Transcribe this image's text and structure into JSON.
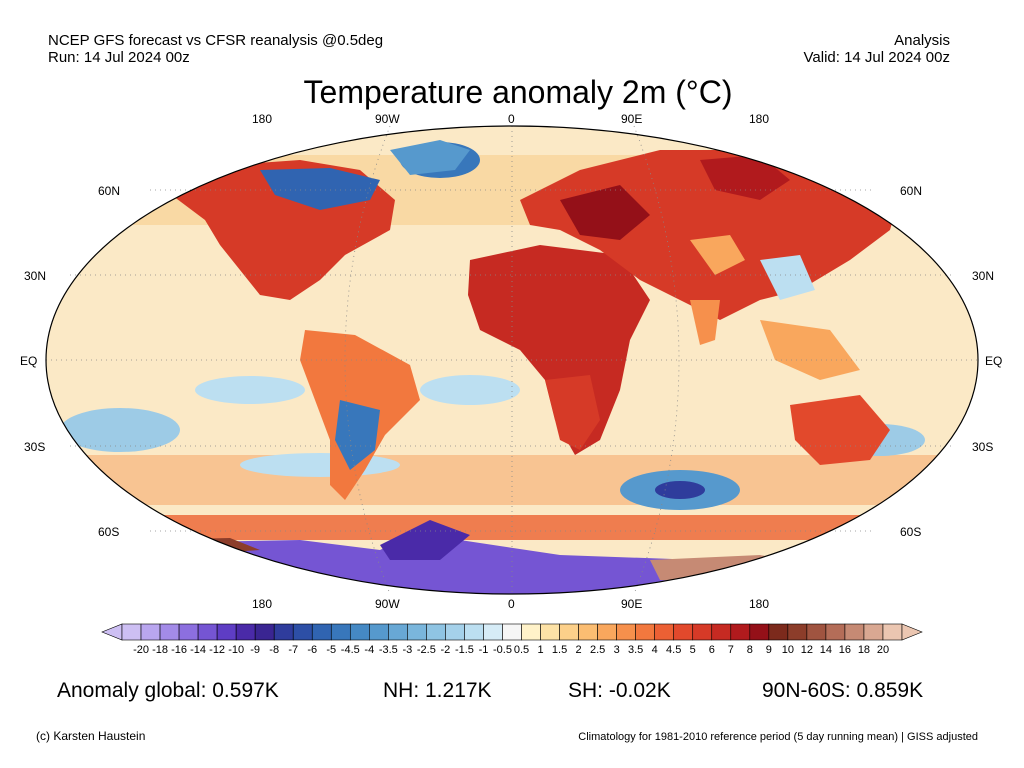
{
  "header": {
    "line1_left": "NCEP GFS forecast vs CFSR reanalysis @0.5deg",
    "line2_left": "Run: 14 Jul 2024 00z",
    "line1_right": "Analysis",
    "line2_right": "Valid: 14 Jul 2024 00z"
  },
  "title": "Temperature anomaly 2m (°C)",
  "map": {
    "projection": "Robinson",
    "lon_labels_top": [
      "180",
      "90W",
      "0",
      "90E",
      "180"
    ],
    "lon_labels_bottom": [
      "180",
      "90W",
      "0",
      "90E",
      "180"
    ],
    "lat_labels_left": [
      "60N",
      "30N",
      "EQ",
      "30S",
      "60S"
    ],
    "lat_labels_right": [
      "60N",
      "30N",
      "EQ",
      "30S",
      "60S"
    ],
    "field_description": "2m temperature anomaly",
    "colors": {
      "ocean_neutral": "#fbe9c6",
      "warm": "#e8593a",
      "hot": "#b71c1c",
      "cool": "#9dcbe6",
      "cold": "#3f6fb5",
      "very_cold": "#6a3fbf",
      "grid": "#888888",
      "coast": "#222222"
    }
  },
  "colorbar": {
    "labels": [
      "-20",
      "-18",
      "-16",
      "-14",
      "-12",
      "-10",
      "-9",
      "-8",
      "-7",
      "-6",
      "-5",
      "-4.5",
      "-4",
      "-3.5",
      "-3",
      "-2.5",
      "-2",
      "-1.5",
      "-1",
      "-0.5",
      "0.5",
      "1",
      "1.5",
      "2",
      "2.5",
      "3",
      "3.5",
      "4",
      "4.5",
      "5",
      "6",
      "7",
      "8",
      "9",
      "10",
      "12",
      "14",
      "16",
      "18",
      "20"
    ],
    "colors": [
      "#cdbff3",
      "#b9a6ef",
      "#a38be8",
      "#8c6fdf",
      "#7555d3",
      "#5e3dc4",
      "#4a2aa8",
      "#3a2592",
      "#2f3c9c",
      "#2d4fa6",
      "#3064b1",
      "#3877bb",
      "#4589c4",
      "#5699cd",
      "#68a8d5",
      "#7ab6dc",
      "#8fc4e3",
      "#a5d1ea",
      "#bcdff1",
      "#d6ecf7",
      "#f6f6f6",
      "#fff2c9",
      "#fde2a6",
      "#fcd08a",
      "#fbbd72",
      "#f9a75d",
      "#f6904c",
      "#f2783e",
      "#ec6034",
      "#e2492c",
      "#d63a27",
      "#c62a22",
      "#b11a1d",
      "#941018",
      "#7c2a1c",
      "#8c3d2a",
      "#a05440",
      "#b46d58",
      "#c68a74",
      "#d9a892",
      "#ebc6b1"
    ]
  },
  "stats": {
    "global": "Anomaly global: 0.597K",
    "nh": "NH: 1.217K",
    "sh": "SH: -0.02K",
    "polar": "90N-60S: 0.859K"
  },
  "footer": {
    "left": "(c) Karsten Haustein",
    "right": "Climatology for 1981-2010 reference period (5 day running mean) | GISS adjusted"
  }
}
